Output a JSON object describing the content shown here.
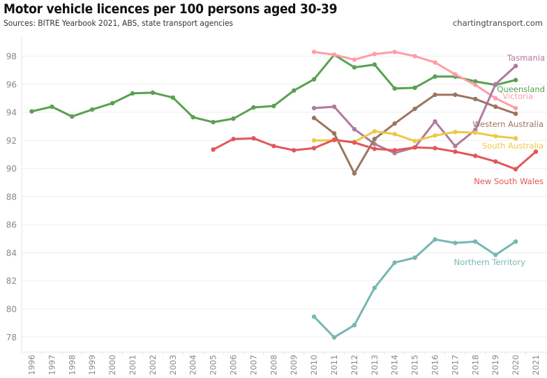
{
  "header": {
    "title": "Motor vehicle licences per 100 persons aged 30-39",
    "subtitle": "Sources: BITRE Yearbook 2021, ABS, state transport agencies",
    "brand": "chartingtransport.com"
  },
  "chart_data": {
    "type": "line",
    "title": "Motor vehicle licences per 100 persons aged 30-39",
    "xlabel": "",
    "ylabel": "",
    "ylim": [
      77.2,
      99.2
    ],
    "yticks": [
      78,
      80,
      82,
      84,
      86,
      88,
      90,
      92,
      94,
      96,
      98
    ],
    "x": [
      1996,
      1997,
      1998,
      1999,
      2000,
      2001,
      2002,
      2003,
      2004,
      2005,
      2006,
      2007,
      2008,
      2009,
      2010,
      2011,
      2012,
      2013,
      2014,
      2015,
      2016,
      2017,
      2018,
      2019,
      2020,
      2021
    ],
    "grid": true,
    "legend": "direct-labels-right",
    "series": [
      {
        "name": "Queensland",
        "color": "#59a14f",
        "label_color": "#59a14f",
        "x": [
          1996,
          1997,
          1998,
          1999,
          2000,
          2001,
          2002,
          2003,
          2004,
          2005,
          2006,
          2007,
          2008,
          2009,
          2010,
          2011,
          2012,
          2013,
          2014,
          2015,
          2016,
          2017,
          2018,
          2019,
          2020
        ],
        "values": [
          94.07,
          94.4,
          93.7,
          94.2,
          94.65,
          95.35,
          95.4,
          95.05,
          93.65,
          93.3,
          93.55,
          94.35,
          94.45,
          95.55,
          96.35,
          98.1,
          97.2,
          97.4,
          95.7,
          95.75,
          96.55,
          96.55,
          96.2,
          95.95,
          96.3
        ]
      },
      {
        "name": "Victoria",
        "color": "#ff9da7",
        "label_color": "#ff9da7",
        "x": [
          2010,
          2011,
          2012,
          2013,
          2014,
          2015,
          2016,
          2017,
          2018,
          2019,
          2020
        ],
        "values": [
          98.3,
          98.1,
          97.75,
          98.15,
          98.3,
          98.0,
          97.55,
          96.7,
          95.95,
          95.0,
          94.3
        ]
      },
      {
        "name": "Tasmania",
        "color": "#b07aa1",
        "label_color": "#b07aa1",
        "x": [
          2010,
          2011,
          2012,
          2013,
          2014,
          2015,
          2016,
          2017,
          2018,
          2019,
          2020
        ],
        "values": [
          94.3,
          94.4,
          92.8,
          91.75,
          91.1,
          91.5,
          93.35,
          91.6,
          92.75,
          96.0,
          97.3
        ]
      },
      {
        "name": "Western Australia",
        "color": "#9c755f",
        "label_color": "#9c755f",
        "x": [
          2010,
          2011,
          2012,
          2013,
          2014,
          2015,
          2016,
          2017,
          2018,
          2019,
          2020
        ],
        "values": [
          93.6,
          92.5,
          89.65,
          92.1,
          93.2,
          94.25,
          95.25,
          95.25,
          94.95,
          94.4,
          93.9
        ]
      },
      {
        "name": "South Australia",
        "color": "#edc948",
        "label_color": "#edc948",
        "x": [
          2010,
          2011,
          2012,
          2013,
          2014,
          2015,
          2016,
          2017,
          2018,
          2019,
          2020
        ],
        "values": [
          92.0,
          92.0,
          91.9,
          92.65,
          92.45,
          91.95,
          92.35,
          92.6,
          92.55,
          92.3,
          92.15
        ]
      },
      {
        "name": "New South Wales",
        "color": "#e15759",
        "label_color": "#e15759",
        "x": [
          2005,
          2006,
          2007,
          2008,
          2009,
          2010,
          2011,
          2012,
          2013,
          2014,
          2015,
          2016,
          2017,
          2018,
          2019,
          2020,
          2021
        ],
        "values": [
          91.35,
          92.1,
          92.15,
          91.6,
          91.3,
          91.45,
          92.05,
          91.85,
          91.4,
          91.3,
          91.5,
          91.45,
          91.2,
          90.9,
          90.5,
          89.95,
          91.2
        ]
      },
      {
        "name": "Northern Territory",
        "color": "#76b7b2",
        "label_color": "#76b7b2",
        "x": [
          2010,
          2011,
          2012,
          2013,
          2014,
          2015,
          2016,
          2017,
          2018,
          2019,
          2020
        ],
        "values": [
          79.45,
          77.98,
          78.85,
          81.5,
          83.3,
          83.65,
          84.95,
          84.7,
          84.8,
          83.85,
          84.8
        ]
      }
    ]
  }
}
